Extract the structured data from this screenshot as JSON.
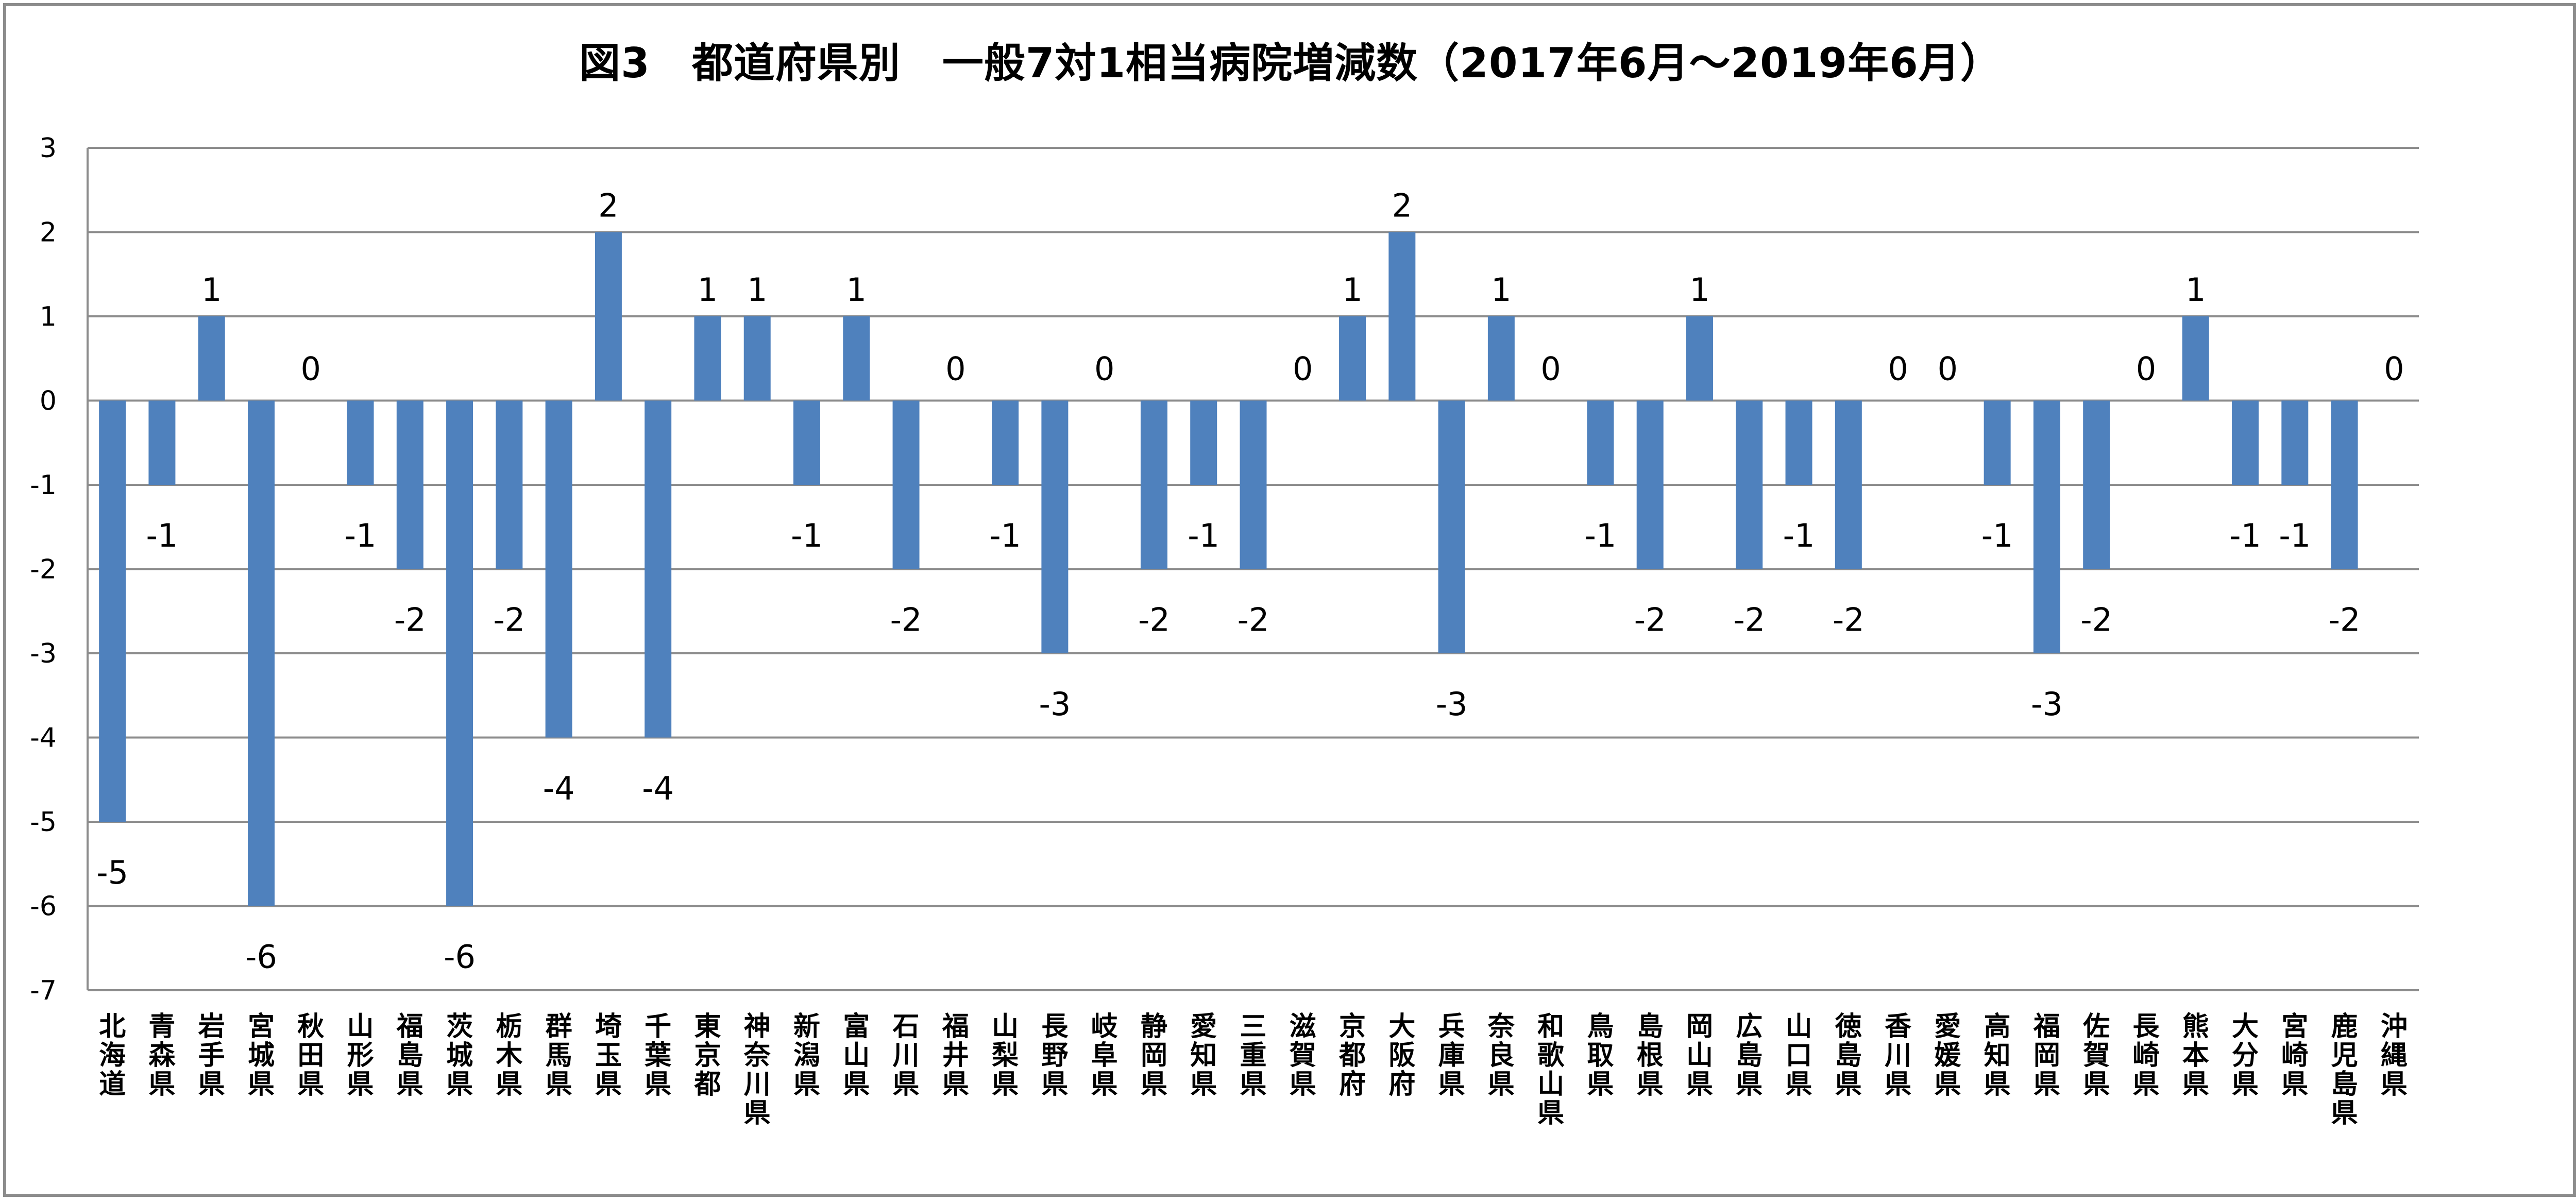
{
  "chart_data": {
    "type": "bar",
    "title": "図3　都道府県別　一般7対1相当病院増減数（2017年6月～2019年6月）",
    "xlabel": "",
    "ylabel": "",
    "ylim": [
      -7,
      3
    ],
    "yticks": [
      3,
      2,
      1,
      0,
      -1,
      -2,
      -3,
      -4,
      -5,
      -6,
      -7
    ],
    "grid": true,
    "legend": "none",
    "bar_color": "#4f81bd",
    "grid_color": "#8c8c8c",
    "categories": [
      "北海道",
      "青森県",
      "岩手県",
      "宮城県",
      "秋田県",
      "山形県",
      "福島県",
      "茨城県",
      "栃木県",
      "群馬県",
      "埼玉県",
      "千葉県",
      "東京都",
      "神奈川県",
      "新潟県",
      "富山県",
      "石川県",
      "福井県",
      "山梨県",
      "長野県",
      "岐阜県",
      "静岡県",
      "愛知県",
      "三重県",
      "滋賀県",
      "京都府",
      "大阪府",
      "兵庫県",
      "奈良県",
      "和歌山県",
      "鳥取県",
      "島根県",
      "岡山県",
      "広島県",
      "山口県",
      "徳島県",
      "香川県",
      "愛媛県",
      "高知県",
      "福岡県",
      "佐賀県",
      "長崎県",
      "熊本県",
      "大分県",
      "宮崎県",
      "鹿児島県",
      "沖縄県"
    ],
    "values": [
      -5,
      -1,
      1,
      -6,
      0,
      -1,
      -2,
      -6,
      -2,
      -4,
      2,
      -4,
      1,
      1,
      -1,
      1,
      -2,
      0,
      -1,
      -3,
      0,
      -2,
      -1,
      -2,
      0,
      1,
      2,
      -3,
      1,
      0,
      -1,
      -2,
      1,
      -2,
      -1,
      -2,
      0,
      0,
      -1,
      -3,
      -2,
      0,
      1,
      -1,
      -1,
      -2,
      0
    ]
  }
}
